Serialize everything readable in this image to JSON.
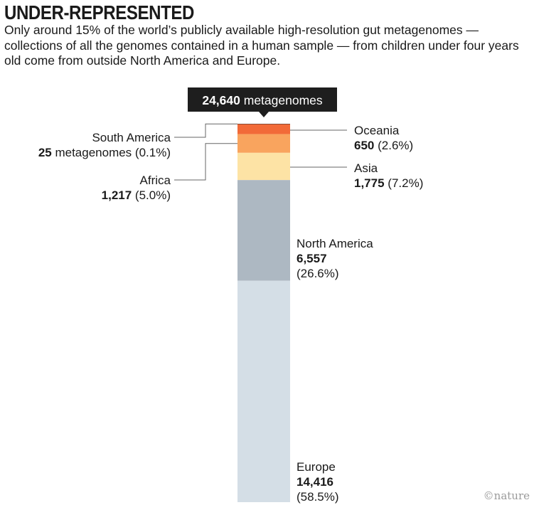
{
  "title": "UNDER-REPRESENTED",
  "subtitle": "Only around 15% of the world’s publicly available high-resolution gut metagenomes — collections of all the genomes contained in a human sample — from children under four years old come from outside North America and Europe.",
  "credit": "©nature",
  "chart_data": {
    "type": "bar",
    "stacked": true,
    "orientation": "vertical",
    "total": {
      "value": 24640,
      "value_label": "24,640",
      "unit_label": "metagenomes"
    },
    "segments": [
      {
        "name": "South America",
        "value": 25,
        "value_label": "25",
        "unit": "metagenomes",
        "percent": "(0.1%)",
        "color": "#2b2b2b",
        "label_side": "left"
      },
      {
        "name": "Oceania",
        "value": 650,
        "value_label": "650",
        "unit": "",
        "percent": "(2.6%)",
        "color": "#f26a38",
        "label_side": "right"
      },
      {
        "name": "Africa",
        "value": 1217,
        "value_label": "1,217",
        "unit": "",
        "percent": "(5.0%)",
        "color": "#f9a45e",
        "label_side": "left"
      },
      {
        "name": "Asia",
        "value": 1775,
        "value_label": "1,775",
        "unit": "",
        "percent": "(7.2%)",
        "color": "#fde3a5",
        "label_side": "right"
      },
      {
        "name": "North America",
        "value": 6557,
        "value_label": "6,557",
        "unit": "",
        "percent": "(26.6%)",
        "color": "#adb8c2",
        "label_side": "inside-right"
      },
      {
        "name": "Europe",
        "value": 14416,
        "value_label": "14,416",
        "unit": "",
        "percent": "(58.5%)",
        "color": "#d4dee6",
        "label_side": "inside-right"
      }
    ]
  }
}
